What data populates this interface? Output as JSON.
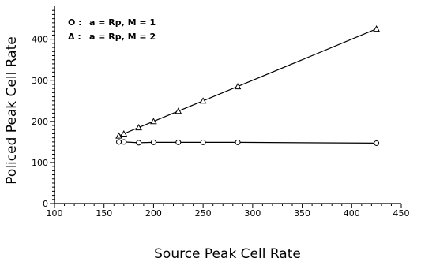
{
  "chart_data": {
    "type": "line",
    "title": "",
    "xlabel": "Source Peak Cell Rate",
    "ylabel": "Policed Peak Cell Rate",
    "xlim": [
      100,
      450
    ],
    "ylim": [
      0,
      480
    ],
    "xticks": [
      "100",
      "150",
      "200",
      "250",
      "300",
      "350",
      "400",
      "450"
    ],
    "yticks": [
      "0",
      "100",
      "200",
      "300",
      "400"
    ],
    "legend_position": "top-left",
    "series": [
      {
        "name": "a = Rp, M = 1",
        "marker": "circle",
        "x": [
          165,
          170,
          185,
          200,
          225,
          250,
          285,
          425
        ],
        "y": [
          150,
          150,
          148,
          149,
          149,
          149,
          149,
          147
        ]
      },
      {
        "name": "a = Rp, M = 2",
        "marker": "triangle",
        "x": [
          165,
          170,
          185,
          200,
          225,
          250,
          285,
          425
        ],
        "y": [
          165,
          170,
          185,
          200,
          225,
          250,
          285,
          425
        ]
      }
    ]
  },
  "legend": {
    "item1": {
      "symbol": "O :",
      "text": "a = Rp,  M = 1"
    },
    "item2": {
      "symbol": "Δ :",
      "text": "a = Rp,  M = 2"
    }
  }
}
